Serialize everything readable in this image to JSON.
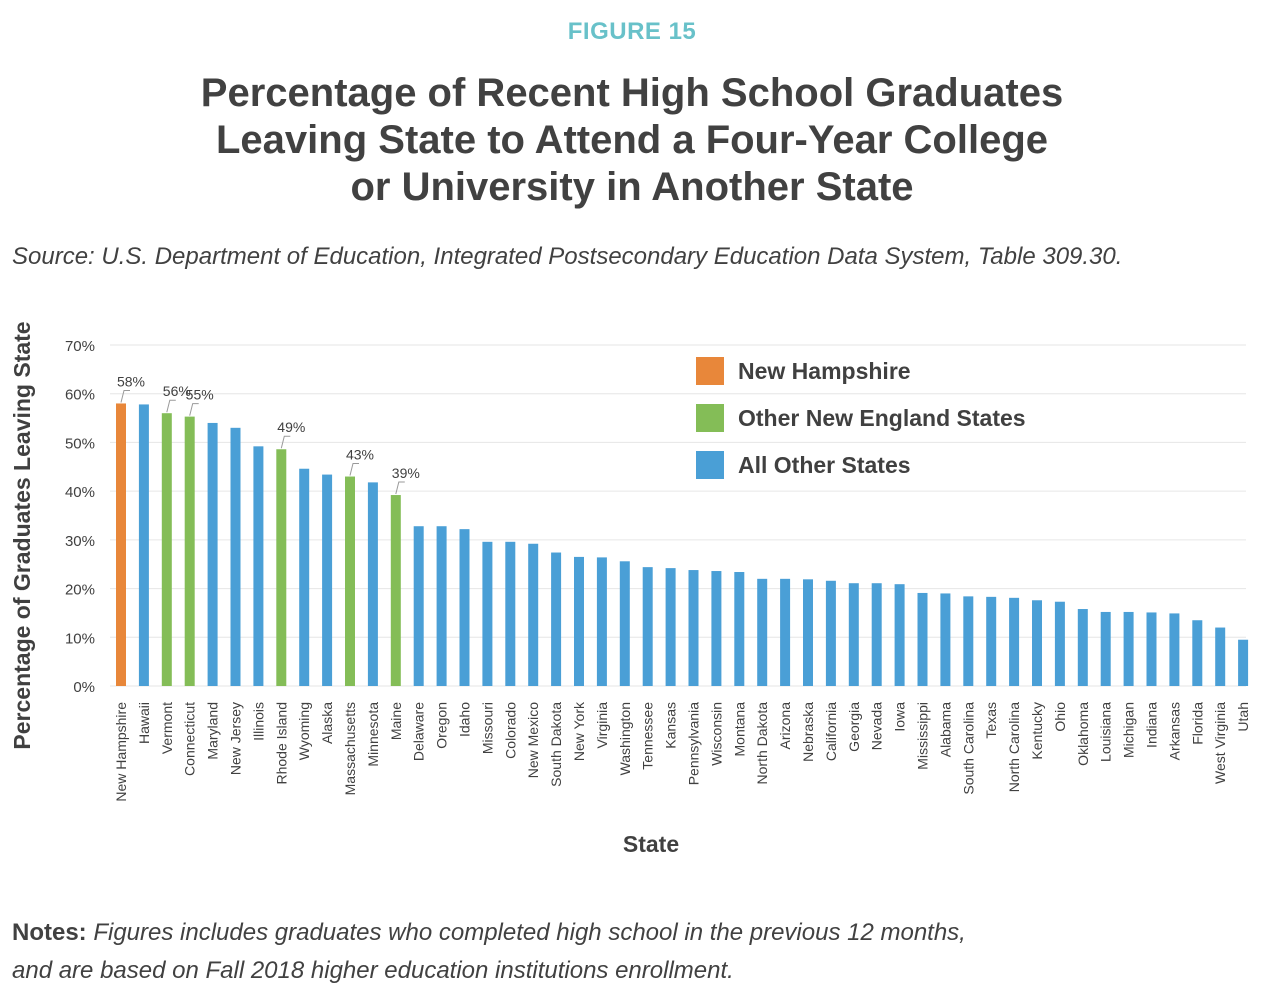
{
  "figure_label": "FIGURE 15",
  "title_lines": [
    "Percentage of Recent High School Graduates",
    "Leaving State to Attend a Four-Year College",
    "or University in Another State"
  ],
  "source": "Source: U.S. Department of Education, Integrated Postsecondary Education Data System, Table 309.30.",
  "notes": {
    "label": "Notes:",
    "line1": "Figures includes graduates who completed high school in the previous 12 months,",
    "line2": "and are based on Fall 2018 higher education institutions enrollment."
  },
  "colors": {
    "nh": "#E8873A",
    "ne": "#84BD57",
    "other": "#4A9FD6",
    "grid": "#E6E6E6",
    "text": "#404040"
  },
  "chart_data": {
    "type": "bar",
    "xlabel": "State",
    "ylabel": "Percentage of Graduates Leaving State",
    "ylim": [
      0,
      70
    ],
    "yticks": [
      "0%",
      "10%",
      "20%",
      "30%",
      "40%",
      "50%",
      "60%",
      "70%"
    ],
    "grid": true,
    "legend_position": "top-right",
    "legend": [
      {
        "label": "New Hampshire",
        "group": "nh"
      },
      {
        "label": "Other New England States",
        "group": "ne"
      },
      {
        "label": "All Other States",
        "group": "other"
      }
    ],
    "categories": [
      "New Hampshire",
      "Hawaii",
      "Vermont",
      "Connecticut",
      "Maryland",
      "New Jersey",
      "Illinois",
      "Rhode Island",
      "Wyoming",
      "Alaska",
      "Massachusetts",
      "Minnesota",
      "Maine",
      "Delaware",
      "Oregon",
      "Idaho",
      "Missouri",
      "Colorado",
      "New Mexico",
      "South Dakota",
      "New York",
      "Virginia",
      "Washington",
      "Tennessee",
      "Kansas",
      "Pennsylvania",
      "Wisconsin",
      "Montana",
      "North Dakota",
      "Arizona",
      "Nebraska",
      "California",
      "Georgia",
      "Nevada",
      "Iowa",
      "Mississippi",
      "Alabama",
      "South Carolina",
      "Texas",
      "North Carolina",
      "Kentucky",
      "Ohio",
      "Oklahoma",
      "Louisiana",
      "Michigan",
      "Indiana",
      "Arkansas",
      "Florida",
      "West Virginia",
      "Utah"
    ],
    "values": [
      58,
      57.8,
      56,
      55.3,
      54,
      53,
      49.2,
      48.6,
      44.6,
      43.4,
      43,
      41.8,
      39.2,
      32.8,
      32.8,
      32.2,
      29.6,
      29.6,
      29.2,
      27.4,
      26.5,
      26.4,
      25.6,
      24.4,
      24.2,
      23.8,
      23.6,
      23.4,
      22,
      22,
      21.9,
      21.6,
      21.1,
      21.1,
      20.9,
      19.1,
      19,
      18.4,
      18.3,
      18.1,
      17.6,
      17.3,
      15.8,
      15.2,
      15.2,
      15.1,
      14.9,
      13.5,
      12,
      9.5
    ],
    "groups": [
      "nh",
      "other",
      "ne",
      "ne",
      "other",
      "other",
      "other",
      "ne",
      "other",
      "other",
      "ne",
      "other",
      "ne",
      "other",
      "other",
      "other",
      "other",
      "other",
      "other",
      "other",
      "other",
      "other",
      "other",
      "other",
      "other",
      "other",
      "other",
      "other",
      "other",
      "other",
      "other",
      "other",
      "other",
      "other",
      "other",
      "other",
      "other",
      "other",
      "other",
      "other",
      "other",
      "other",
      "other",
      "other",
      "other",
      "other",
      "other",
      "other",
      "other",
      "other"
    ],
    "data_labels": [
      {
        "category": "New Hampshire",
        "text": "58%"
      },
      {
        "category": "Vermont",
        "text": "56%"
      },
      {
        "category": "Connecticut",
        "text": "55%"
      },
      {
        "category": "Rhode Island",
        "text": "49%"
      },
      {
        "category": "Massachusetts",
        "text": "43%"
      },
      {
        "category": "Maine",
        "text": "39%"
      }
    ]
  }
}
